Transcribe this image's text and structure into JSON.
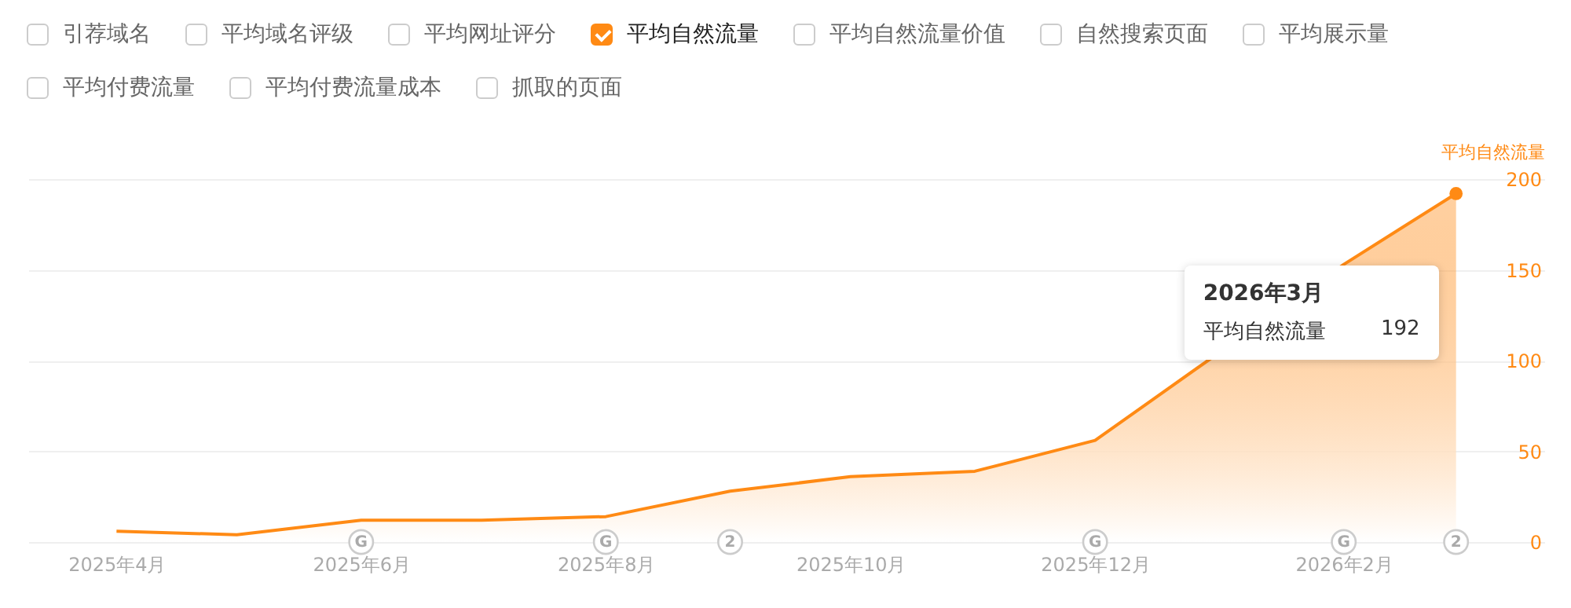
{
  "chart_data": {
    "type": "area",
    "ylabel": "平均自然流量",
    "x": [
      "2025-04",
      "2025-05",
      "2025-06",
      "2025-07",
      "2025-08",
      "2025-09",
      "2025-10",
      "2025-11",
      "2025-12",
      "2026-01",
      "2026-02",
      "2026-03"
    ],
    "series": [
      {
        "name": "平均自然流量",
        "color": "#ff8a14",
        "values": [
          6,
          4,
          12,
          12,
          14,
          28,
          36,
          39,
          56,
          null,
          153,
          192
        ]
      }
    ],
    "xlim": [
      "2025-03-10",
      "2026-03-23"
    ],
    "xticks": [
      {
        "value": "2025-04",
        "label": "2025年4月"
      },
      {
        "value": "2025-06",
        "label": "2025年6月"
      },
      {
        "value": "2025-08",
        "label": "2025年8月"
      },
      {
        "value": "2025-10",
        "label": "2025年10月"
      },
      {
        "value": "2025-12",
        "label": "2025年12月"
      },
      {
        "value": "2026-02",
        "label": "2026年2月"
      }
    ],
    "ylim": [
      0,
      200
    ],
    "yticks": [
      0,
      50,
      100,
      150,
      200
    ],
    "grid": "y",
    "legend": "top left",
    "marker": "none",
    "line_style": "solid",
    "annotations": [
      "引荐域名",
      "平均域名评级",
      "平均网址评分",
      "平均自然流量价值",
      "自然搜索页面",
      "平均展示量",
      "平均付费流量",
      "平均付费流量成本",
      "抓取的页面",
      "2026年3月",
      "192",
      {
        "text": "G",
        "x": "2025-06",
        "y": 0
      },
      {
        "text": "G",
        "x": "2025-08",
        "y": 0
      },
      {
        "text": "2",
        "x": "2025-09",
        "y": 0
      },
      {
        "text": "G",
        "x": "2025-12",
        "y": 0
      },
      {
        "text": "G",
        "x": "2026-02",
        "y": 0
      },
      {
        "text": "2",
        "x": "2026-03",
        "y": 0
      }
    ]
  }
}
